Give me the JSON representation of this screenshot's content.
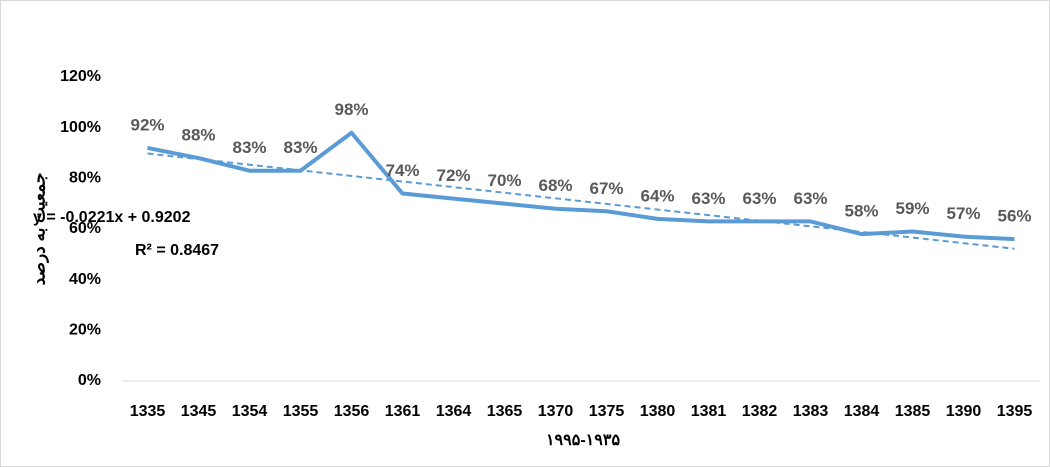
{
  "chart_data": {
    "type": "line",
    "categories": [
      "1335",
      "1345",
      "1354",
      "1355",
      "1356",
      "1361",
      "1364",
      "1365",
      "1370",
      "1375",
      "1380",
      "1381",
      "1382",
      "1383",
      "1384",
      "1385",
      "1390",
      "1395"
    ],
    "values": [
      92,
      88,
      83,
      83,
      98,
      74,
      72,
      70,
      68,
      67,
      64,
      63,
      63,
      63,
      58,
      59,
      57,
      56
    ],
    "value_labels": [
      "92%",
      "88%",
      "83%",
      "83%",
      "98%",
      "74%",
      "72%",
      "70%",
      "68%",
      "67%",
      "64%",
      "63%",
      "63%",
      "63%",
      "58%",
      "59%",
      "57%",
      "56%"
    ],
    "color": "#5b9bd5",
    "ylim": [
      0,
      120
    ],
    "yticks": [
      {
        "value": 0,
        "label": "0%"
      },
      {
        "value": 20,
        "label": "20%"
      },
      {
        "value": 40,
        "label": "40%"
      },
      {
        "value": 60,
        "label": "60%"
      },
      {
        "value": 80,
        "label": "80%"
      },
      {
        "value": 100,
        "label": "100%"
      },
      {
        "value": 120,
        "label": "120%"
      }
    ],
    "y_axis_title": "جمعیت به درصد",
    "x_axis_title": "۱۹۹۵-۱۹۳۵",
    "grid": false,
    "trendline": {
      "equation": "y = -0.0221x + 0.9202",
      "r_squared": "R² = 0.8467",
      "values": [
        89.8,
        52.2
      ]
    }
  }
}
